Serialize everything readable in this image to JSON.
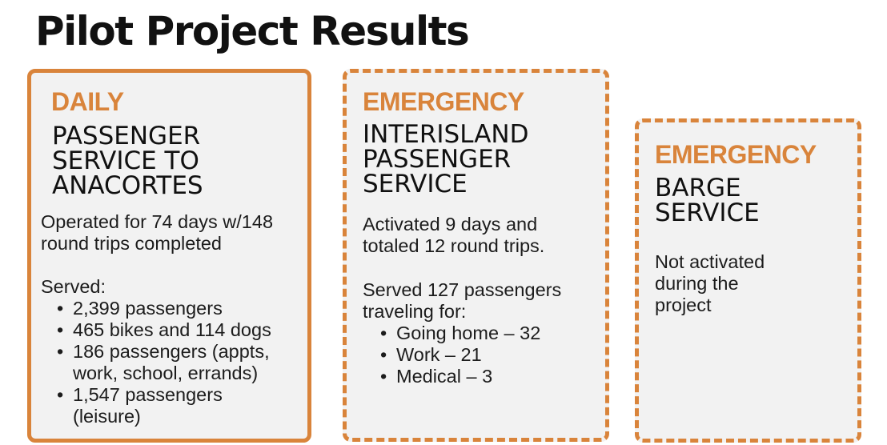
{
  "title": "Pilot Project Results",
  "colors": {
    "accent": "#d9843b",
    "card_bg": "#f2f2f2"
  },
  "cards": [
    {
      "kicker": "DAILY",
      "heading": [
        "PASSENGER",
        "SERVICE TO",
        "ANACORTES"
      ],
      "p1": [
        "Operated for 74 days w/148",
        "round trips completed"
      ],
      "p2": "Served:",
      "bullets": [
        [
          "2,399 passengers"
        ],
        [
          "465 bikes and 114 dogs"
        ],
        [
          "186 passengers (appts,",
          "work, school, errands)"
        ],
        [
          "1,547 passengers",
          "(leisure)"
        ]
      ]
    },
    {
      "kicker": "EMERGENCY",
      "heading": [
        "INTERISLAND",
        "PASSENGER",
        "SERVICE"
      ],
      "p1": [
        "Activated 9 days and",
        "totaled 12 round trips."
      ],
      "p2": [
        "Served 127 passengers",
        "traveling for:"
      ],
      "bullets": [
        [
          "Going home – 32"
        ],
        [
          "Work – 21"
        ],
        [
          "Medical – 3"
        ]
      ]
    },
    {
      "kicker": "EMERGENCY",
      "heading": [
        "BARGE",
        "SERVICE"
      ],
      "p1": [
        "Not activated",
        "during the",
        "project"
      ]
    }
  ]
}
